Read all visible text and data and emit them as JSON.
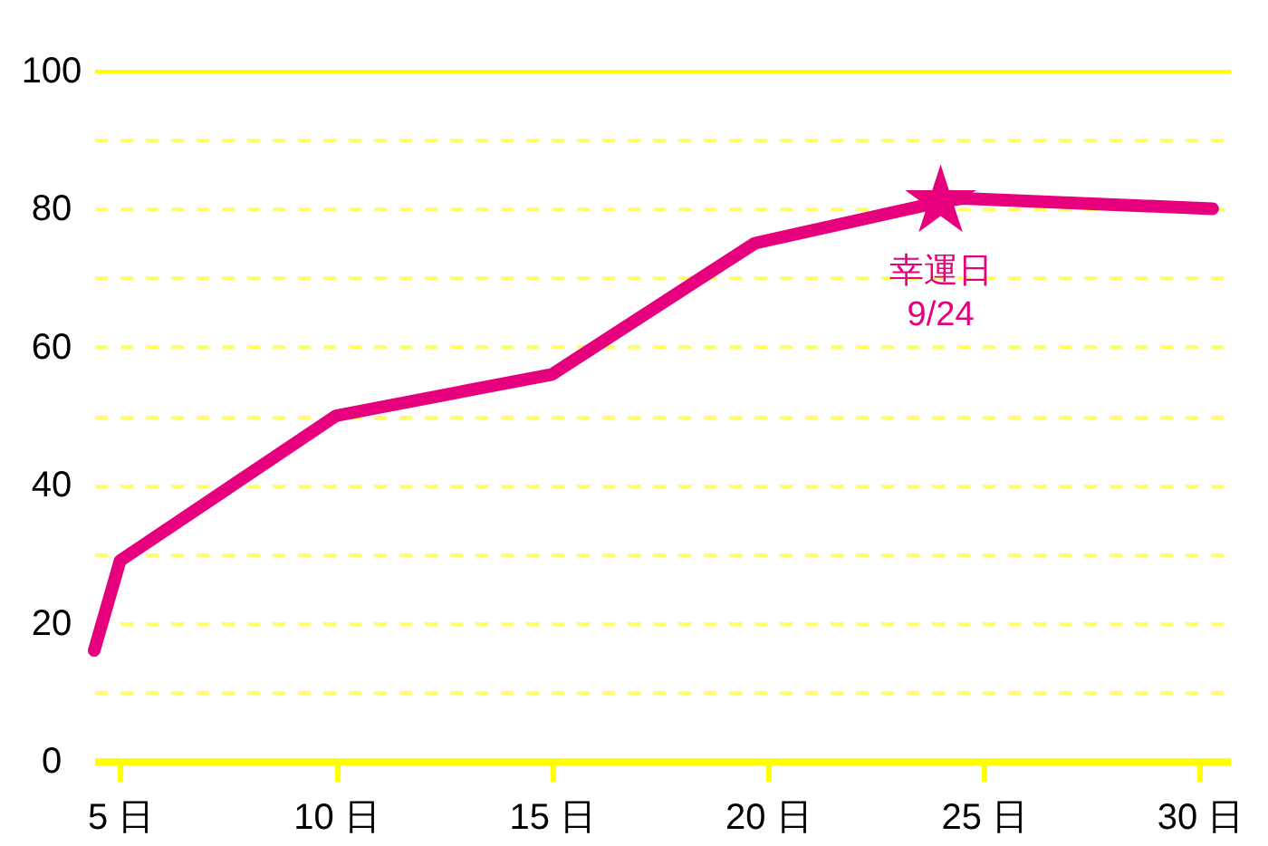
{
  "chart_data": {
    "type": "line",
    "x": [
      4.4,
      5,
      10,
      15,
      19.7,
      24,
      24.5,
      30.3
    ],
    "xlim": [
      4.4,
      30.7
    ],
    "xticks": [
      {
        "value": 5,
        "label": "5 日"
      },
      {
        "value": 10,
        "label": "10 日"
      },
      {
        "value": 15,
        "label": "15 日"
      },
      {
        "value": 20,
        "label": "20 日"
      },
      {
        "value": 25,
        "label": "25 日"
      },
      {
        "value": 30,
        "label": "30 日"
      }
    ],
    "ylim": [
      0,
      100
    ],
    "yticks": [
      0,
      {
        "value": 10,
        "label": null
      },
      20,
      {
        "value": 30,
        "label": null
      },
      40,
      {
        "value": 50,
        "label": null
      },
      60,
      {
        "value": 70,
        "label": null
      },
      80,
      {
        "value": 90,
        "label": null
      },
      100
    ],
    "grid": "y",
    "annotations": [
      {
        "text": "幸運日\n9/24",
        "x": 24,
        "y": 81
      }
    ],
    "series": [
      {
        "color": "#e6007e",
        "values": [
          16,
          29,
          50,
          56,
          75,
          81,
          81.5,
          80
        ]
      },
      {
        "type": "scatter",
        "marker": "star",
        "x": [
          24
        ],
        "values": [
          81
        ],
        "color": "#e6007e"
      }
    ]
  }
}
